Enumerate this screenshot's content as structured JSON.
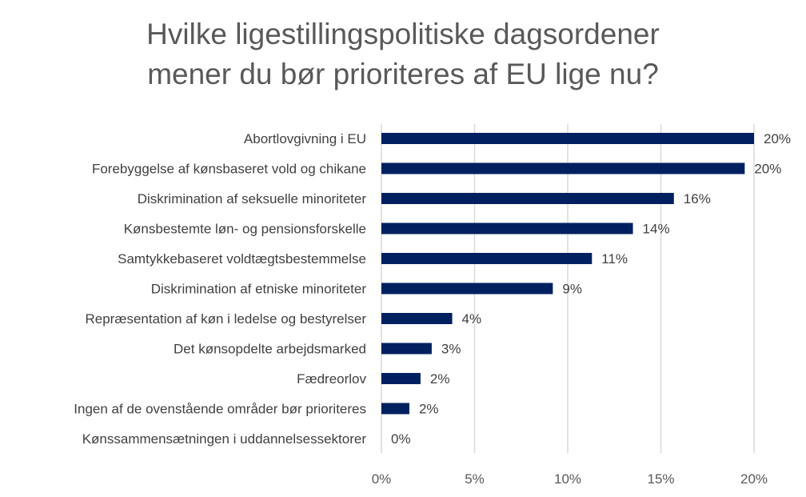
{
  "chart_data": {
    "type": "bar",
    "orientation": "horizontal",
    "title_lines": [
      "Hvilke ligestillingspolitiske dagsordener",
      "mener du bør prioriteres af EU lige nu?"
    ],
    "categories": [
      "Abortlovgivning i EU",
      "Forebyggelse af kønsbaseret vold og chikane",
      "Diskrimination af seksuelle minoriteter",
      "Kønsbestemte løn- og pensionsforskelle",
      "Samtykkebaseret voldtægtsbestemmelse",
      "Diskrimination af etniske minoriteter",
      "Repræsentation af køn i ledelse og bestyrelser",
      "Det kønsopdelte arbejdsmarked",
      "Fædreorlov",
      "Ingen af de ovenstående områder bør prioriteres",
      "Kønssammensætningen i uddannelsessektorer"
    ],
    "values": [
      20.0,
      19.5,
      15.7,
      13.5,
      11.3,
      9.2,
      3.8,
      2.7,
      2.1,
      1.5,
      0
    ],
    "data_labels": [
      "20%",
      "20%",
      "16%",
      "14%",
      "11%",
      "9%",
      "4%",
      "3%",
      "2%",
      "2%",
      "0%"
    ],
    "xlim": [
      0,
      20
    ],
    "x_ticks": [
      0,
      5,
      10,
      15,
      20
    ],
    "x_tick_labels": [
      "0%",
      "5%",
      "10%",
      "15%",
      "20%"
    ],
    "grid": "vertical",
    "legend": "none",
    "bar_color": "#002060",
    "grid_color": "#d9d9d9"
  }
}
